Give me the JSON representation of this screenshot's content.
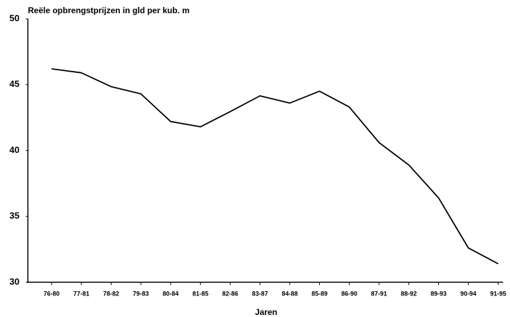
{
  "chart_data": {
    "type": "line",
    "title": "Reële opbrengstprijzen in gld per kub. m",
    "x_label": "Jaren",
    "categories": [
      "76-80",
      "77-81",
      "78-82",
      "79-83",
      "80-84",
      "81-85",
      "82-86",
      "83-87",
      "84-88",
      "85-89",
      "86-90",
      "87-91",
      "88-92",
      "89-93",
      "90-94",
      "91-95"
    ],
    "series": [
      {
        "color": "#000000",
        "values": [
          46.2,
          45.9,
          44.85,
          44.3,
          42.2,
          41.8,
          42.95,
          44.15,
          43.6,
          44.5,
          43.3,
          40.6,
          38.9,
          36.4,
          32.6,
          31.4
        ]
      }
    ],
    "ylim": [
      30,
      50
    ],
    "yticks": [
      30,
      35,
      40,
      45,
      50
    ],
    "grid": false
  }
}
